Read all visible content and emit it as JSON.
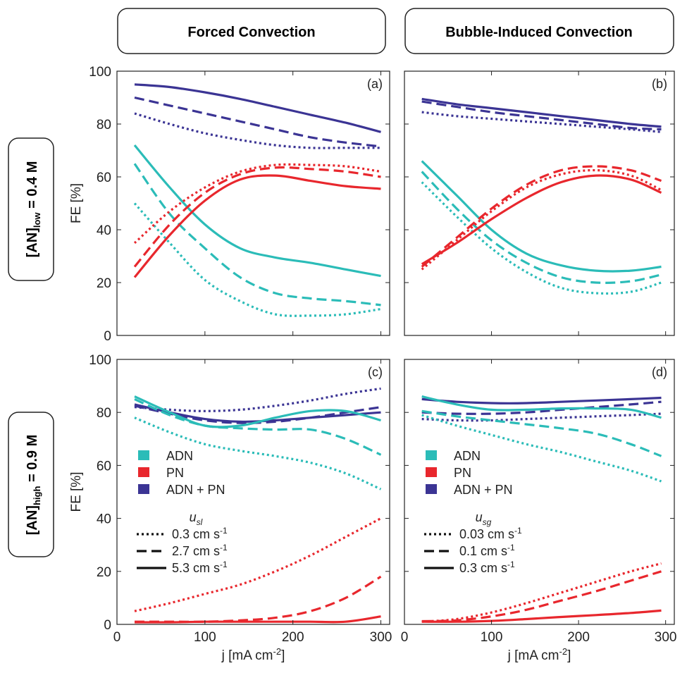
{
  "column_headers": [
    "Forced Convection",
    "Bubble-Induced Convection"
  ],
  "row_headers": [
    {
      "base": "[AN]",
      "sub": "low",
      "suffix": " = 0.4 M"
    },
    {
      "base": "[AN]",
      "sub": "high",
      "suffix": " = 0.9 M"
    }
  ],
  "colors": {
    "ADN": "#2bbcb8",
    "PN": "#e8272d",
    "ADN + PN": "#3b3494"
  },
  "chart_data": [
    {
      "type": "line",
      "panel": "(a)",
      "xlabel": "j [mA cm",
      "xlabel_sup": "-2",
      "xlabel_end": "]",
      "ylabel": "FE [%]",
      "xlim": [
        0,
        310
      ],
      "ylim": [
        0,
        100
      ],
      "xticks": [
        0,
        100,
        200,
        300
      ],
      "yticks": [
        0,
        20,
        40,
        60,
        80,
        100
      ],
      "x": [
        20,
        60,
        100,
        140,
        180,
        220,
        260,
        300
      ],
      "series": [
        {
          "group": "ADN + PN",
          "style": "solid",
          "values": [
            95,
            94,
            92,
            89.5,
            86.5,
            83.5,
            80.5,
            77
          ]
        },
        {
          "group": "ADN + PN",
          "style": "dashed",
          "values": [
            90,
            87,
            84,
            81,
            78,
            75,
            73,
            71.5
          ]
        },
        {
          "group": "ADN + PN",
          "style": "dotted",
          "values": [
            84,
            80,
            76.5,
            74,
            72,
            71,
            71,
            71
          ]
        },
        {
          "group": "ADN",
          "style": "solid",
          "values": [
            72,
            56,
            42,
            33,
            29.5,
            27.5,
            25,
            22.5
          ]
        },
        {
          "group": "ADN",
          "style": "dashed",
          "values": [
            65,
            46,
            33,
            22,
            16,
            14,
            13,
            11.5
          ]
        },
        {
          "group": "ADN",
          "style": "dotted",
          "values": [
            50,
            35,
            21,
            13,
            8,
            7.5,
            8,
            10
          ]
        },
        {
          "group": "PN",
          "style": "solid",
          "values": [
            22,
            38,
            51,
            59,
            60.5,
            58.5,
            56.5,
            55.5
          ]
        },
        {
          "group": "PN",
          "style": "dashed",
          "values": [
            26,
            42,
            54,
            61,
            63.5,
            63,
            62,
            60
          ]
        },
        {
          "group": "PN",
          "style": "dotted",
          "values": [
            35,
            47,
            56,
            62,
            64.5,
            64.5,
            64,
            62
          ]
        }
      ]
    },
    {
      "type": "line",
      "panel": "(b)",
      "xlabel": "j [mA cm",
      "xlabel_sup": "-2",
      "xlabel_end": "]",
      "ylabel": "",
      "xlim": [
        0,
        310
      ],
      "ylim": [
        0,
        100
      ],
      "xticks": [
        0,
        100,
        200,
        300
      ],
      "yticks": [],
      "x": [
        20,
        60,
        100,
        140,
        180,
        220,
        260,
        295
      ],
      "series": [
        {
          "group": "ADN + PN",
          "style": "solid",
          "values": [
            89.5,
            87.5,
            86,
            84.5,
            83,
            81.5,
            80,
            79
          ]
        },
        {
          "group": "ADN + PN",
          "style": "dashed",
          "values": [
            88.5,
            86.5,
            84.5,
            83,
            81.5,
            80,
            78.5,
            78
          ]
        },
        {
          "group": "ADN + PN",
          "style": "dotted",
          "values": [
            84.5,
            83,
            82,
            81,
            80,
            79,
            78,
            77
          ]
        },
        {
          "group": "ADN",
          "style": "solid",
          "values": [
            66,
            53,
            40,
            31,
            26.5,
            24.5,
            24.5,
            26
          ]
        },
        {
          "group": "ADN",
          "style": "dashed",
          "values": [
            62,
            48,
            36,
            27.5,
            22,
            20,
            20.5,
            23
          ]
        },
        {
          "group": "ADN",
          "style": "dotted",
          "values": [
            58,
            45,
            33,
            24,
            18,
            16,
            16.5,
            20
          ]
        },
        {
          "group": "PN",
          "style": "solid",
          "values": [
            27,
            35,
            44,
            52,
            58,
            60.5,
            59,
            54
          ]
        },
        {
          "group": "PN",
          "style": "dashed",
          "values": [
            26,
            37,
            48,
            57,
            62.5,
            64,
            62.5,
            58.5
          ]
        },
        {
          "group": "PN",
          "style": "dotted",
          "values": [
            25,
            36,
            47,
            56,
            61,
            62.5,
            60.5,
            55
          ]
        }
      ]
    },
    {
      "type": "line",
      "panel": "(c)",
      "xlabel": "j [mA cm",
      "xlabel_sup": "-2",
      "xlabel_end": "]",
      "ylabel": "FE [%]",
      "xlim": [
        0,
        310
      ],
      "ylim": [
        0,
        100
      ],
      "xticks": [
        0,
        100,
        200,
        300
      ],
      "yticks": [
        0,
        20,
        40,
        60,
        80,
        100
      ],
      "x": [
        20,
        60,
        100,
        140,
        180,
        220,
        260,
        300
      ],
      "series": [
        {
          "group": "ADN + PN",
          "style": "solid",
          "values": [
            83,
            80,
            77.5,
            76.5,
            77,
            78,
            79,
            80
          ]
        },
        {
          "group": "ADN + PN",
          "style": "dashed",
          "values": [
            82.5,
            79.5,
            77,
            76,
            76.5,
            78,
            80,
            82
          ]
        },
        {
          "group": "ADN + PN",
          "style": "dotted",
          "values": [
            82,
            81,
            80.5,
            81,
            82.5,
            84.5,
            87,
            89
          ]
        },
        {
          "group": "ADN",
          "style": "solid",
          "values": [
            86,
            80,
            75,
            75,
            78,
            80.5,
            80.5,
            77
          ]
        },
        {
          "group": "ADN",
          "style": "dashed",
          "values": [
            85,
            79,
            75,
            74,
            73.5,
            73.5,
            70,
            64
          ]
        },
        {
          "group": "ADN",
          "style": "dotted",
          "values": [
            78,
            72.5,
            68,
            65.5,
            63.5,
            61,
            57,
            51
          ]
        },
        {
          "group": "PN",
          "style": "solid",
          "values": [
            0.8,
            0.8,
            1,
            1,
            1,
            1,
            1,
            3
          ]
        },
        {
          "group": "PN",
          "style": "dashed",
          "values": [
            1,
            1,
            1,
            1.5,
            2.5,
            5,
            10,
            18
          ]
        },
        {
          "group": "PN",
          "style": "dotted",
          "values": [
            5,
            8,
            11.5,
            15,
            20,
            26,
            33,
            40
          ]
        }
      ],
      "legend": {
        "entries": [
          "ADN",
          "PN",
          "ADN + PN"
        ],
        "styles_title": "u",
        "styles_title_sub": "sl",
        "styles": [
          {
            "style": "dotted",
            "label": "0.3 cm s",
            "sup": "-1"
          },
          {
            "style": "dashed",
            "label": "2.7 cm s",
            "sup": "-1"
          },
          {
            "style": "solid",
            "label": "5.3 cm s",
            "sup": "-1"
          }
        ]
      }
    },
    {
      "type": "line",
      "panel": "(d)",
      "xlabel": "j [mA cm",
      "xlabel_sup": "-2",
      "xlabel_end": "]",
      "ylabel": "",
      "xlim": [
        0,
        310
      ],
      "ylim": [
        0,
        100
      ],
      "xticks": [
        0,
        100,
        200,
        300
      ],
      "yticks": [],
      "x": [
        20,
        60,
        100,
        140,
        180,
        220,
        260,
        295
      ],
      "series": [
        {
          "group": "ADN + PN",
          "style": "solid",
          "values": [
            85,
            84,
            83.5,
            83.5,
            84,
            84.5,
            85,
            85.5
          ]
        },
        {
          "group": "ADN + PN",
          "style": "dashed",
          "values": [
            80,
            79.5,
            79.5,
            80,
            81,
            82,
            83,
            84
          ]
        },
        {
          "group": "ADN + PN",
          "style": "dotted",
          "values": [
            77.5,
            77,
            77,
            77.5,
            78,
            78.5,
            79,
            79.5
          ]
        },
        {
          "group": "ADN",
          "style": "solid",
          "values": [
            86,
            83,
            81,
            81,
            81.5,
            81.5,
            81,
            78
          ]
        },
        {
          "group": "ADN",
          "style": "dashed",
          "values": [
            80.5,
            78.5,
            77,
            75.5,
            74,
            72,
            68,
            63.5
          ]
        },
        {
          "group": "ADN",
          "style": "dotted",
          "values": [
            79,
            75,
            71.5,
            68,
            65,
            61.5,
            58,
            54
          ]
        },
        {
          "group": "PN",
          "style": "solid",
          "values": [
            1,
            1,
            1.3,
            2,
            2.8,
            3.5,
            4.3,
            5.2
          ]
        },
        {
          "group": "PN",
          "style": "dashed",
          "values": [
            1.2,
            1.5,
            3,
            5.5,
            9,
            12.5,
            16.5,
            20
          ]
        },
        {
          "group": "PN",
          "style": "dotted",
          "values": [
            1,
            2,
            4.5,
            8,
            12,
            16,
            20,
            23
          ]
        }
      ],
      "legend": {
        "entries": [
          "ADN",
          "PN",
          "ADN + PN"
        ],
        "styles_title": "u",
        "styles_title_sub": "sg",
        "styles": [
          {
            "style": "dotted",
            "label": "0.03 cm s",
            "sup": "-1"
          },
          {
            "style": "dashed",
            "label": "0.1 cm s",
            "sup": "-1"
          },
          {
            "style": "solid",
            "label": "0.3 cm s",
            "sup": "-1"
          }
        ]
      }
    }
  ]
}
